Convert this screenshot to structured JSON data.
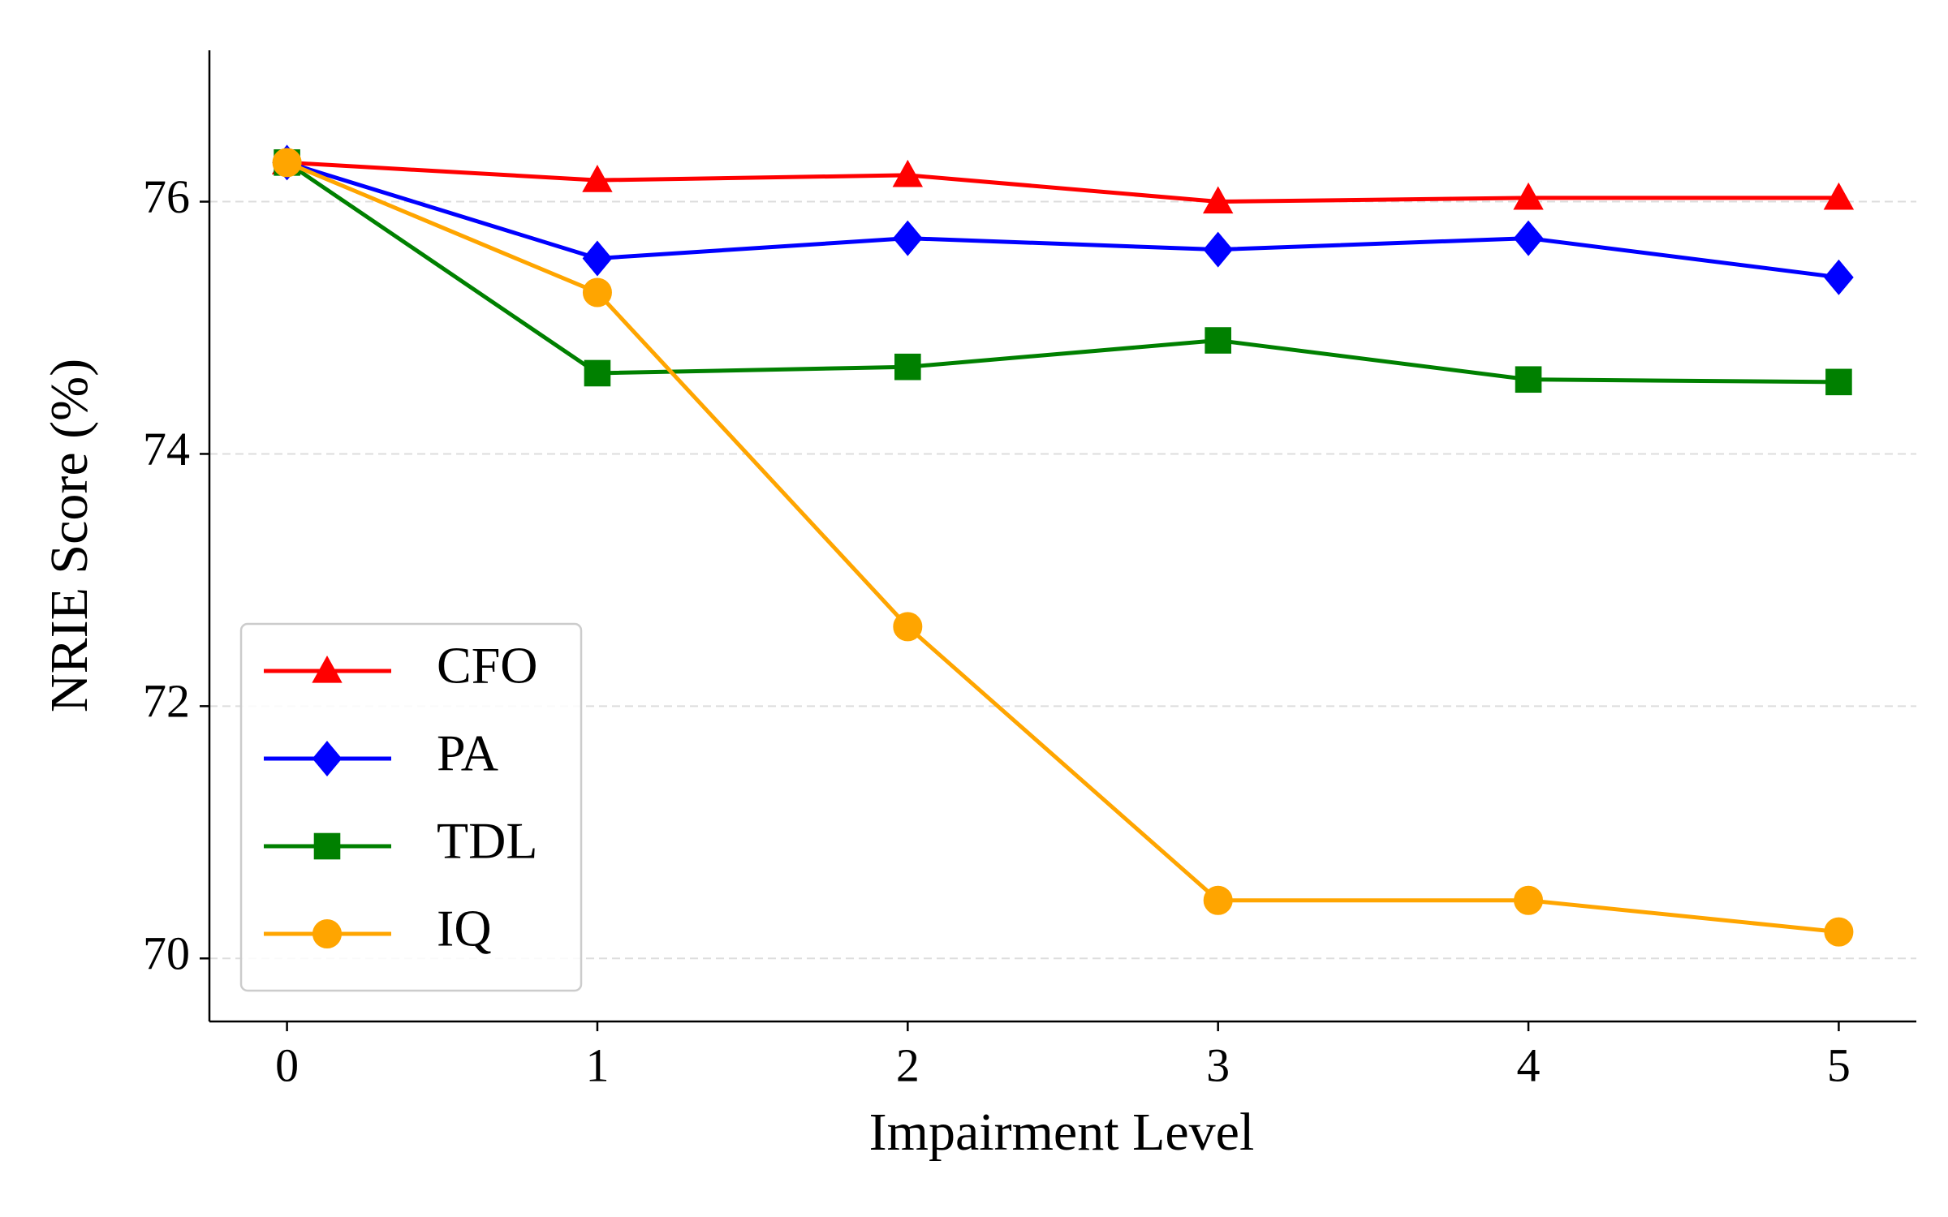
{
  "chart_data": {
    "type": "line",
    "x_label": "Impairment Level",
    "y_label": "NRIE Score (%)",
    "x": [
      0,
      1,
      2,
      3,
      4,
      5
    ],
    "series": [
      {
        "name": "CFO",
        "color": "#ff0000",
        "marker": "triangle",
        "values": [
          76.31,
          76.17,
          76.21,
          76.0,
          76.03,
          76.03
        ]
      },
      {
        "name": "PA",
        "color": "#0000ff",
        "marker": "diamond",
        "values": [
          76.31,
          75.55,
          75.71,
          75.62,
          75.71,
          75.4
        ]
      },
      {
        "name": "TDL",
        "color": "#008000",
        "marker": "square",
        "values": [
          76.31,
          74.64,
          74.69,
          74.9,
          74.59,
          74.57
        ]
      },
      {
        "name": "IQ",
        "color": "#ffa500",
        "marker": "circle",
        "values": [
          76.31,
          75.28,
          72.63,
          70.46,
          70.46,
          70.21
        ]
      }
    ],
    "xlim": [
      -0.25,
      5.25
    ],
    "xticks": [
      0,
      1,
      2,
      3,
      4,
      5
    ],
    "ylim": [
      69.5,
      77.2
    ],
    "yticks": [
      70,
      72,
      74,
      76
    ],
    "grid": true,
    "legend": "lower left"
  }
}
